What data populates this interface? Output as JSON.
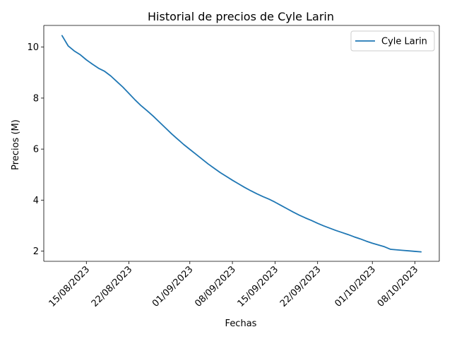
{
  "chart_data": {
    "type": "line",
    "title": "Historial de precios de Cyle Larin",
    "xlabel": "Fechas",
    "ylabel": "Precios (M)",
    "ylim": [
      1.6,
      10.85
    ],
    "xlim": [
      "2023-08-08",
      "2023-10-12"
    ],
    "grid": false,
    "legend_position": "top-right",
    "x_ticks": [
      {
        "date": "2023-08-15",
        "label": "15/08/2023"
      },
      {
        "date": "2023-08-22",
        "label": "22/08/2023"
      },
      {
        "date": "2023-09-01",
        "label": "01/09/2023"
      },
      {
        "date": "2023-09-08",
        "label": "08/09/2023"
      },
      {
        "date": "2023-09-15",
        "label": "15/09/2023"
      },
      {
        "date": "2023-09-22",
        "label": "22/09/2023"
      },
      {
        "date": "2023-10-01",
        "label": "01/10/2023"
      },
      {
        "date": "2023-10-08",
        "label": "08/10/2023"
      }
    ],
    "y_ticks": [
      2,
      4,
      6,
      8,
      10
    ],
    "series": [
      {
        "name": "Cyle Larin",
        "color": "#1f77b4",
        "x": [
          "2023-08-11",
          "2023-08-12",
          "2023-08-13",
          "2023-08-14",
          "2023-08-15",
          "2023-08-16",
          "2023-08-17",
          "2023-08-18",
          "2023-08-19",
          "2023-08-20",
          "2023-08-21",
          "2023-08-22",
          "2023-08-23",
          "2023-08-24",
          "2023-08-25",
          "2023-08-26",
          "2023-08-27",
          "2023-08-28",
          "2023-08-29",
          "2023-08-30",
          "2023-08-31",
          "2023-09-01",
          "2023-09-02",
          "2023-09-03",
          "2023-09-04",
          "2023-09-05",
          "2023-09-06",
          "2023-09-07",
          "2023-09-08",
          "2023-09-09",
          "2023-09-10",
          "2023-09-11",
          "2023-09-12",
          "2023-09-13",
          "2023-09-14",
          "2023-09-15",
          "2023-09-16",
          "2023-09-17",
          "2023-09-18",
          "2023-09-19",
          "2023-09-20",
          "2023-09-21",
          "2023-09-22",
          "2023-09-23",
          "2023-09-24",
          "2023-09-25",
          "2023-09-26",
          "2023-09-27",
          "2023-09-28",
          "2023-09-29",
          "2023-09-30",
          "2023-10-01",
          "2023-10-02",
          "2023-10-03",
          "2023-10-04",
          "2023-10-05",
          "2023-10-06",
          "2023-10-07",
          "2023-10-08",
          "2023-10-09"
        ],
        "values": [
          10.45,
          10.05,
          9.85,
          9.7,
          9.5,
          9.33,
          9.17,
          9.05,
          8.87,
          8.65,
          8.43,
          8.18,
          7.93,
          7.7,
          7.5,
          7.29,
          7.06,
          6.83,
          6.6,
          6.39,
          6.18,
          5.99,
          5.8,
          5.61,
          5.42,
          5.25,
          5.08,
          4.93,
          4.78,
          4.64,
          4.5,
          4.37,
          4.25,
          4.14,
          4.04,
          3.92,
          3.79,
          3.66,
          3.53,
          3.41,
          3.3,
          3.2,
          3.09,
          2.99,
          2.9,
          2.81,
          2.73,
          2.65,
          2.56,
          2.48,
          2.39,
          2.31,
          2.24,
          2.17,
          2.07,
          2.05,
          2.03,
          2.01,
          1.99,
          1.97
        ]
      }
    ]
  }
}
